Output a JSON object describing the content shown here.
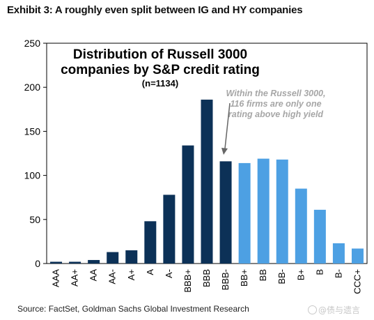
{
  "exhibit_title": "Exhibit 3: A roughly even split between IG and HY companies",
  "source": "Source: FactSet, Goldman Sachs Global Investment Research",
  "watermark": "@债与遗言",
  "chart_data": {
    "type": "bar",
    "title_lines": [
      "Distribution of Russell 3000",
      "companies by S&P credit rating"
    ],
    "subtitle": "(n=1134)",
    "categories": [
      "AAA",
      "AA+",
      "AA",
      "AA-",
      "A+",
      "A",
      "A-",
      "BBB+",
      "BBB",
      "BBB-",
      "BB+",
      "BB",
      "BB-",
      "B+",
      "B",
      "B-",
      "CCC+"
    ],
    "values": [
      2,
      2,
      4,
      13,
      15,
      48,
      78,
      134,
      186,
      116,
      114,
      119,
      118,
      85,
      61,
      23,
      17
    ],
    "group": [
      "IG",
      "IG",
      "IG",
      "IG",
      "IG",
      "IG",
      "IG",
      "IG",
      "IG",
      "IG",
      "HY",
      "HY",
      "HY",
      "HY",
      "HY",
      "HY",
      "HY"
    ],
    "colors": {
      "IG": "#0c3157",
      "HY": "#4da0e3"
    },
    "ylim": [
      0,
      250
    ],
    "yticks": [
      0,
      50,
      100,
      150,
      200,
      250
    ],
    "grid": false,
    "annotation": {
      "lines": [
        "Within the Russell  3000,",
        "116 firms are only one",
        "rating above high yield"
      ],
      "target_category": "BBB-"
    }
  }
}
